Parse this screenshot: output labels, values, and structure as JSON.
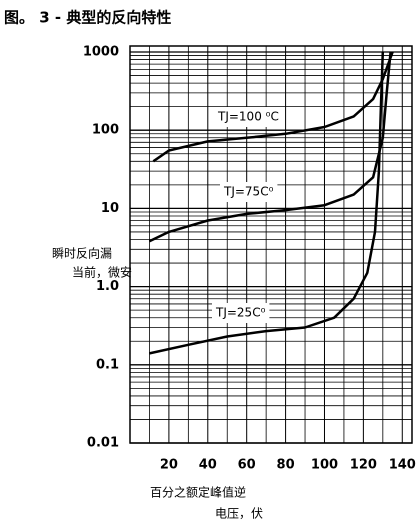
{
  "chart_data": {
    "type": "line",
    "title": "图。 3 - 典型的反向特性",
    "y_label": [
      "瞬时反向漏",
      "当前，微安"
    ],
    "x_label": [
      "百分之额定峰值逆",
      "电压，伏"
    ],
    "log_y": true,
    "grid": true,
    "color": "#000000",
    "xlim": [
      0,
      145
    ],
    "xticks": [
      20,
      40,
      60,
      80,
      100,
      120,
      140
    ],
    "ylim": [
      0.01,
      1000
    ],
    "yticks": [
      1000,
      100,
      10,
      {
        "value": 1,
        "label": "1.0"
      },
      0.1,
      0.01
    ],
    "series": [
      {
        "name": "TJ=100 ⁰C",
        "color": "#000000",
        "x": [
          12,
          20,
          40,
          60,
          80,
          100,
          115,
          125,
          130,
          135
        ],
        "values": [
          40,
          55,
          72,
          80,
          90,
          110,
          150,
          250,
          450,
          1000
        ]
      },
      {
        "name": "TJ=75C⁰",
        "color": "#000000",
        "x": [
          10,
          20,
          40,
          60,
          80,
          100,
          115,
          125,
          130,
          132,
          134
        ],
        "values": [
          3.8,
          5,
          7,
          8.5,
          9.5,
          11,
          15,
          25,
          80,
          300,
          1000
        ]
      },
      {
        "name": "TJ=25C⁰",
        "color": "#000000",
        "x": [
          10,
          30,
          50,
          70,
          90,
          105,
          115,
          122,
          126,
          128,
          129,
          130
        ],
        "values": [
          0.14,
          0.18,
          0.23,
          0.27,
          0.3,
          0.4,
          0.7,
          1.5,
          5,
          30,
          200,
          1000
        ]
      }
    ]
  }
}
